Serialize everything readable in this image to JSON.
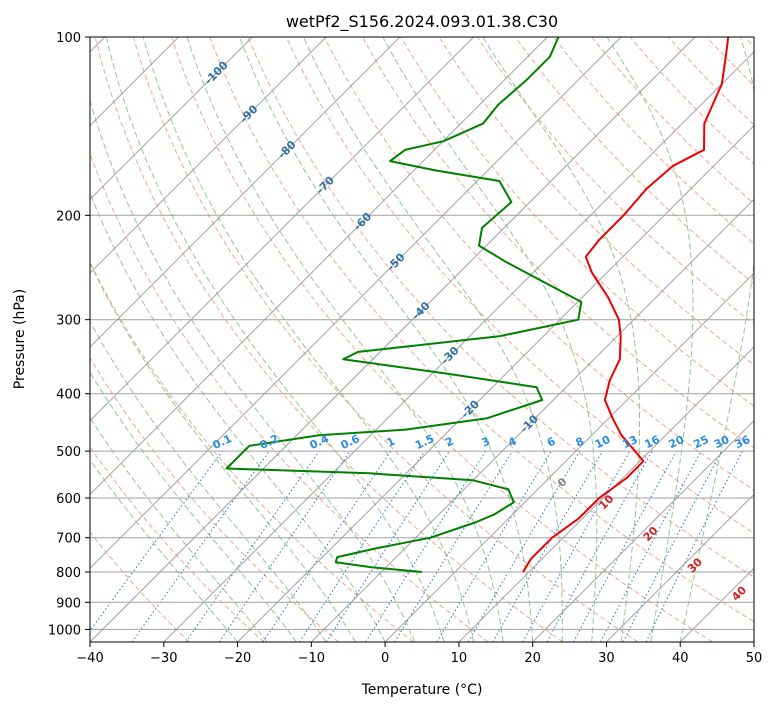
{
  "chart_data": {
    "type": "line",
    "diagram": "skew-t",
    "title": "wetPf2_S156.2024.093.01.38.C30",
    "xlabel": "Temperature (°C)",
    "ylabel": "Pressure (hPa)",
    "xlim": [
      -40,
      50
    ],
    "ylim": [
      1050,
      100
    ],
    "y_scale": "log",
    "grid": true,
    "x_ticks": [
      -40,
      -30,
      -20,
      -10,
      0,
      10,
      20,
      30,
      40,
      50
    ],
    "x_tick_labels": [
      "−40",
      "−30",
      "−20",
      "−10",
      "0",
      "10",
      "20",
      "30",
      "40",
      "50"
    ],
    "y_ticks": [
      100,
      200,
      300,
      400,
      500,
      600,
      700,
      800,
      900,
      1000
    ],
    "y_tick_labels": [
      "100",
      "200",
      "300",
      "400",
      "500",
      "600",
      "700",
      "800",
      "900",
      "1000"
    ],
    "series": [
      {
        "name": "",
        "color": "#ee0000",
        "points": [
          {
            "p": 800,
            "t": 9.2
          },
          {
            "p": 760,
            "t": 8.5
          },
          {
            "p": 700,
            "t": 8.5
          },
          {
            "p": 650,
            "t": 9.5
          },
          {
            "p": 600,
            "t": 9.5
          },
          {
            "p": 555,
            "t": 10.5
          },
          {
            "p": 520,
            "t": 10.5
          },
          {
            "p": 500,
            "t": 8.0
          },
          {
            "p": 470,
            "t": 4.0
          },
          {
            "p": 440,
            "t": 0.5
          },
          {
            "p": 410,
            "t": -3.0
          },
          {
            "p": 380,
            "t": -5.0
          },
          {
            "p": 350,
            "t": -6.5
          },
          {
            "p": 320,
            "t": -9.5
          },
          {
            "p": 300,
            "t": -12.0
          },
          {
            "p": 275,
            "t": -16.5
          },
          {
            "p": 250,
            "t": -22.0
          },
          {
            "p": 235,
            "t": -25.0
          },
          {
            "p": 220,
            "t": -25.5
          },
          {
            "p": 200,
            "t": -25.5
          },
          {
            "p": 180,
            "t": -26.0
          },
          {
            "p": 165,
            "t": -25.5
          },
          {
            "p": 155,
            "t": -23.5
          },
          {
            "p": 140,
            "t": -27.0
          },
          {
            "p": 120,
            "t": -30.0
          },
          {
            "p": 105,
            "t": -34.0
          },
          {
            "p": 100,
            "t": -35.5
          }
        ]
      },
      {
        "name": "",
        "color": "#008000",
        "points": [
          {
            "p": 800,
            "t": -4.5
          },
          {
            "p": 785,
            "t": -12.0
          },
          {
            "p": 770,
            "t": -17.5
          },
          {
            "p": 755,
            "t": -18.0
          },
          {
            "p": 730,
            "t": -14.0
          },
          {
            "p": 700,
            "t": -8.0
          },
          {
            "p": 660,
            "t": -4.0
          },
          {
            "p": 640,
            "t": -2.5
          },
          {
            "p": 610,
            "t": -1.5
          },
          {
            "p": 580,
            "t": -4.0
          },
          {
            "p": 560,
            "t": -10.0
          },
          {
            "p": 545,
            "t": -25.0
          },
          {
            "p": 535,
            "t": -45.0
          },
          {
            "p": 490,
            "t": -45.0
          },
          {
            "p": 470,
            "t": -37.0
          },
          {
            "p": 460,
            "t": -26.0
          },
          {
            "p": 440,
            "t": -16.5
          },
          {
            "p": 410,
            "t": -11.5
          },
          {
            "p": 390,
            "t": -14.0
          },
          {
            "p": 370,
            "t": -28.0
          },
          {
            "p": 350,
            "t": -44.0
          },
          {
            "p": 340,
            "t": -43.0
          },
          {
            "p": 320,
            "t": -26.0
          },
          {
            "p": 300,
            "t": -17.5
          },
          {
            "p": 280,
            "t": -19.5
          },
          {
            "p": 260,
            "t": -27.0
          },
          {
            "p": 240,
            "t": -35.0
          },
          {
            "p": 225,
            "t": -41.0
          },
          {
            "p": 210,
            "t": -43.0
          },
          {
            "p": 190,
            "t": -42.5
          },
          {
            "p": 175,
            "t": -47.0
          },
          {
            "p": 168,
            "t": -57.0
          },
          {
            "p": 162,
            "t": -64.5
          },
          {
            "p": 155,
            "t": -64.0
          },
          {
            "p": 150,
            "t": -60.0
          },
          {
            "p": 140,
            "t": -57.0
          },
          {
            "p": 130,
            "t": -57.5
          },
          {
            "p": 118,
            "t": -57.0
          },
          {
            "p": 108,
            "t": -57.0
          },
          {
            "p": 100,
            "t": -58.5
          }
        ]
      }
    ],
    "dry_adiabat_labels": [
      "-100",
      "-90",
      "-80",
      "-70",
      "-60",
      "-50",
      "-40",
      "-30",
      "-20",
      "-10",
      "0",
      "10",
      "20",
      "30",
      "40"
    ],
    "mixing_ratio_labels": [
      "0.1",
      "0.2",
      "0.4",
      "0.6",
      "1",
      "1.5",
      "2",
      "3",
      "4",
      "6",
      "8",
      "10",
      "13",
      "16",
      "20",
      "25",
      "30",
      "36"
    ],
    "colors": {
      "isotherm": "#a0a0a0",
      "isobar": "#a0a0a0",
      "dry_adiabat": "#f4a58c",
      "moist_adiabat": "#8fc98f",
      "mixing_ratio": "#1e78d2",
      "dry_label": "#2f70a8",
      "moist_label": "#cc2222",
      "mixing_label": "#2a8ce0"
    }
  }
}
